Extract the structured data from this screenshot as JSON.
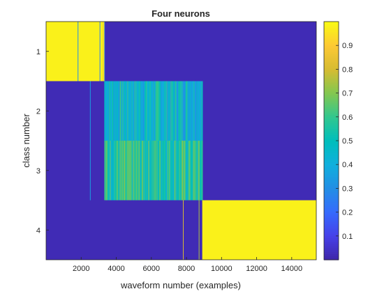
{
  "chart_data": {
    "type": "heatmap",
    "title": "Four neurons",
    "xlabel": "waveform number (examples)",
    "ylabel": "class number",
    "xlim": [
      0,
      15400
    ],
    "x_ticks": [
      2000,
      4000,
      6000,
      8000,
      10000,
      12000,
      14000
    ],
    "x_tick_labels": [
      "2000",
      "4000",
      "6000",
      "8000",
      "10000",
      "12000",
      "14000"
    ],
    "y_ticks": [
      1,
      2,
      3,
      4
    ],
    "y_tick_labels": [
      "1",
      "2",
      "3",
      "4"
    ],
    "colorbar": {
      "colormap": "parula",
      "range": [
        0,
        1
      ],
      "ticks": [
        0.1,
        0.2,
        0.3,
        0.4,
        0.5,
        0.6,
        0.7,
        0.8,
        0.9
      ],
      "tick_labels": [
        "0.1",
        "0.2",
        "0.3",
        "0.4",
        "0.5",
        "0.6",
        "0.7",
        "0.8",
        "0.9"
      ]
    },
    "rows": [
      {
        "class": 1,
        "background": 0.02,
        "segments": [
          {
            "x_start": 0,
            "x_end": 3250,
            "value": 0.98
          },
          {
            "x_start": 3250,
            "x_end": 3320,
            "value": 0.95
          },
          {
            "x_start": 3320,
            "x_end": 3350,
            "value": 0.3
          }
        ]
      },
      {
        "class": 2,
        "background": 0.02,
        "segments": [
          {
            "x_start": 3320,
            "x_end": 8900,
            "value": 0.42,
            "variation": [
              0.3,
              0.62
            ]
          }
        ]
      },
      {
        "class": 3,
        "background": 0.02,
        "segments": [
          {
            "x_start": 3320,
            "x_end": 8900,
            "value": 0.58,
            "variation": [
              0.4,
              0.72
            ]
          }
        ]
      },
      {
        "class": 4,
        "background": 0.02,
        "segments": [
          {
            "x_start": 8900,
            "x_end": 15400,
            "value": 0.98
          }
        ]
      }
    ],
    "vertical_lines": [
      {
        "x": 2500,
        "value": 0.35,
        "rows": [
          2,
          3
        ]
      },
      {
        "x": 7800,
        "value": 0.8,
        "rows": [
          4
        ]
      },
      {
        "x": 8700,
        "value": 0.75,
        "rows": [
          4
        ]
      },
      {
        "x": 1800,
        "value": 0.3,
        "rows": [
          1
        ]
      },
      {
        "x": 3050,
        "value": 0.25,
        "rows": [
          1
        ]
      }
    ]
  }
}
